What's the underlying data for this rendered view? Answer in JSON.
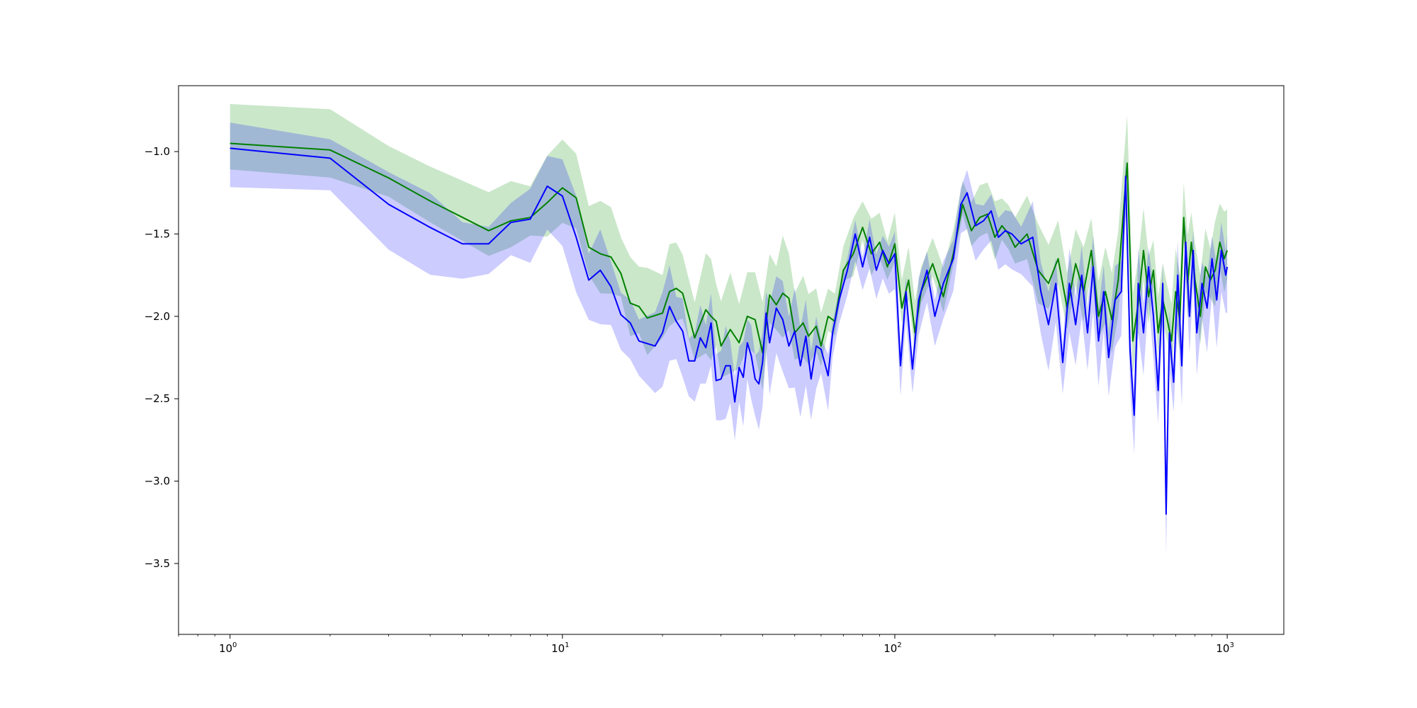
{
  "chart_data": {
    "type": "line",
    "title": "",
    "xlabel": "",
    "ylabel": "",
    "xscale": "log",
    "xlim": [
      0.7,
      1480
    ],
    "ylim": [
      -3.93,
      -0.6
    ],
    "grid": false,
    "legend": "none",
    "yticks": [
      -1.0,
      -1.5,
      -2.0,
      -2.5,
      -3.0,
      -3.5
    ],
    "ytick_labels": [
      "−1.0",
      "−1.5",
      "−2.0",
      "−2.5",
      "−3.0",
      "−3.5"
    ],
    "xticks": [
      1,
      10,
      100,
      1000
    ],
    "xtick_labels": [
      {
        "base": "10",
        "exp": "0"
      },
      {
        "base": "10",
        "exp": "1"
      },
      {
        "base": "10",
        "exp": "2"
      },
      {
        "base": "10",
        "exp": "3"
      }
    ],
    "series": [
      {
        "color": "#008000",
        "band_color": "#2ca02c",
        "points": [
          [
            1,
            -0.95
          ],
          [
            2,
            -0.99
          ],
          [
            3,
            -1.16
          ],
          [
            4,
            -1.3
          ],
          [
            6,
            -1.48
          ],
          [
            7,
            -1.42
          ],
          [
            8,
            -1.4
          ],
          [
            9,
            -1.31
          ],
          [
            10,
            -1.22
          ],
          [
            11,
            -1.28
          ],
          [
            12,
            -1.58
          ],
          [
            13,
            -1.62
          ],
          [
            14,
            -1.64
          ],
          [
            15,
            -1.74
          ],
          [
            16,
            -1.92
          ],
          [
            17,
            -1.94
          ],
          [
            18,
            -2.01
          ],
          [
            20,
            -1.98
          ],
          [
            21,
            -1.85
          ],
          [
            22,
            -1.83
          ],
          [
            23,
            -1.86
          ],
          [
            25,
            -2.13
          ],
          [
            27,
            -1.96
          ],
          [
            28,
            -2.0
          ],
          [
            29,
            -2.03
          ],
          [
            30,
            -2.18
          ],
          [
            32,
            -2.08
          ],
          [
            34,
            -2.16
          ],
          [
            36,
            -2.0
          ],
          [
            38,
            -2.02
          ],
          [
            40,
            -2.22
          ],
          [
            42,
            -1.87
          ],
          [
            44,
            -1.93
          ],
          [
            46,
            -1.86
          ],
          [
            48,
            -1.89
          ],
          [
            50,
            -2.1
          ],
          [
            53,
            -2.04
          ],
          [
            55,
            -2.12
          ],
          [
            58,
            -2.06
          ],
          [
            60,
            -2.18
          ],
          [
            63,
            -2.0
          ],
          [
            66,
            -2.03
          ],
          [
            70,
            -1.72
          ],
          [
            75,
            -1.62
          ],
          [
            80,
            -1.46
          ],
          [
            85,
            -1.62
          ],
          [
            90,
            -1.55
          ],
          [
            95,
            -1.7
          ],
          [
            100,
            -1.56
          ],
          [
            105,
            -1.95
          ],
          [
            110,
            -1.78
          ],
          [
            115,
            -2.1
          ],
          [
            120,
            -1.85
          ],
          [
            130,
            -1.68
          ],
          [
            140,
            -1.88
          ],
          [
            150,
            -1.62
          ],
          [
            160,
            -1.32
          ],
          [
            170,
            -1.48
          ],
          [
            180,
            -1.4
          ],
          [
            190,
            -1.38
          ],
          [
            200,
            -1.52
          ],
          [
            210,
            -1.45
          ],
          [
            220,
            -1.5
          ],
          [
            230,
            -1.58
          ],
          [
            250,
            -1.5
          ],
          [
            270,
            -1.72
          ],
          [
            290,
            -1.8
          ],
          [
            310,
            -1.65
          ],
          [
            330,
            -1.95
          ],
          [
            350,
            -1.68
          ],
          [
            370,
            -1.85
          ],
          [
            390,
            -1.6
          ],
          [
            410,
            -2.0
          ],
          [
            430,
            -1.85
          ],
          [
            450,
            -2.02
          ],
          [
            470,
            -1.78
          ],
          [
            500,
            -1.07
          ],
          [
            520,
            -2.15
          ],
          [
            540,
            -1.92
          ],
          [
            560,
            -1.6
          ],
          [
            580,
            -1.88
          ],
          [
            600,
            -1.72
          ],
          [
            620,
            -2.1
          ],
          [
            640,
            -1.9
          ],
          [
            660,
            -2.02
          ],
          [
            680,
            -2.15
          ],
          [
            700,
            -1.85
          ],
          [
            720,
            -2.02
          ],
          [
            740,
            -1.4
          ],
          [
            760,
            -1.8
          ],
          [
            780,
            -1.55
          ],
          [
            800,
            -1.78
          ],
          [
            830,
            -2.0
          ],
          [
            860,
            -1.7
          ],
          [
            890,
            -1.78
          ],
          [
            920,
            -1.72
          ],
          [
            950,
            -1.55
          ],
          [
            980,
            -1.65
          ],
          [
            1000,
            -1.6
          ]
        ]
      },
      {
        "color": "#0000ff",
        "band_color": "#0000ff",
        "points": [
          [
            1,
            -0.98
          ],
          [
            2,
            -1.04
          ],
          [
            3,
            -1.32
          ],
          [
            4,
            -1.46
          ],
          [
            5,
            -1.56
          ],
          [
            6,
            -1.56
          ],
          [
            7,
            -1.43
          ],
          [
            8,
            -1.41
          ],
          [
            9,
            -1.21
          ],
          [
            10,
            -1.27
          ],
          [
            11,
            -1.52
          ],
          [
            12,
            -1.78
          ],
          [
            13,
            -1.72
          ],
          [
            14,
            -1.82
          ],
          [
            15,
            -1.99
          ],
          [
            16,
            -2.04
          ],
          [
            17,
            -2.15
          ],
          [
            19,
            -2.18
          ],
          [
            20,
            -2.1
          ],
          [
            21,
            -1.94
          ],
          [
            22,
            -2.03
          ],
          [
            23,
            -2.09
          ],
          [
            24,
            -2.27
          ],
          [
            25,
            -2.27
          ],
          [
            26,
            -2.13
          ],
          [
            27,
            -2.19
          ],
          [
            28,
            -2.04
          ],
          [
            29,
            -2.39
          ],
          [
            30,
            -2.38
          ],
          [
            31,
            -2.3
          ],
          [
            32,
            -2.3
          ],
          [
            33,
            -2.52
          ],
          [
            34,
            -2.31
          ],
          [
            35,
            -2.37
          ],
          [
            36,
            -2.16
          ],
          [
            37,
            -2.24
          ],
          [
            38,
            -2.38
          ],
          [
            39,
            -2.41
          ],
          [
            40,
            -2.28
          ],
          [
            41,
            -1.98
          ],
          [
            42,
            -2.16
          ],
          [
            44,
            -1.95
          ],
          [
            46,
            -2.02
          ],
          [
            48,
            -2.18
          ],
          [
            50,
            -2.09
          ],
          [
            52,
            -2.3
          ],
          [
            54,
            -2.12
          ],
          [
            56,
            -2.38
          ],
          [
            58,
            -2.18
          ],
          [
            60,
            -2.2
          ],
          [
            63,
            -2.36
          ],
          [
            65,
            -2.1
          ],
          [
            68,
            -1.9
          ],
          [
            72,
            -1.72
          ],
          [
            76,
            -1.5
          ],
          [
            80,
            -1.7
          ],
          [
            84,
            -1.52
          ],
          [
            88,
            -1.72
          ],
          [
            92,
            -1.6
          ],
          [
            96,
            -1.68
          ],
          [
            100,
            -1.62
          ],
          [
            104,
            -2.3
          ],
          [
            108,
            -1.85
          ],
          [
            113,
            -2.32
          ],
          [
            118,
            -1.9
          ],
          [
            125,
            -1.72
          ],
          [
            132,
            -2.0
          ],
          [
            140,
            -1.8
          ],
          [
            150,
            -1.65
          ],
          [
            158,
            -1.32
          ],
          [
            165,
            -1.25
          ],
          [
            175,
            -1.45
          ],
          [
            185,
            -1.42
          ],
          [
            195,
            -1.36
          ],
          [
            205,
            -1.52
          ],
          [
            215,
            -1.48
          ],
          [
            225,
            -1.5
          ],
          [
            240,
            -1.56
          ],
          [
            260,
            -1.52
          ],
          [
            275,
            -1.85
          ],
          [
            290,
            -2.05
          ],
          [
            305,
            -1.8
          ],
          [
            320,
            -2.28
          ],
          [
            335,
            -1.8
          ],
          [
            350,
            -2.05
          ],
          [
            365,
            -1.75
          ],
          [
            380,
            -2.1
          ],
          [
            395,
            -1.7
          ],
          [
            410,
            -2.15
          ],
          [
            425,
            -1.85
          ],
          [
            440,
            -2.25
          ],
          [
            460,
            -1.9
          ],
          [
            480,
            -1.85
          ],
          [
            495,
            -1.15
          ],
          [
            510,
            -2.2
          ],
          [
            525,
            -2.6
          ],
          [
            540,
            -1.8
          ],
          [
            560,
            -2.1
          ],
          [
            580,
            -1.7
          ],
          [
            600,
            -2.0
          ],
          [
            620,
            -2.45
          ],
          [
            640,
            -1.8
          ],
          [
            655,
            -3.2
          ],
          [
            670,
            -2.1
          ],
          [
            690,
            -2.4
          ],
          [
            710,
            -1.75
          ],
          [
            730,
            -2.3
          ],
          [
            750,
            -1.55
          ],
          [
            770,
            -2.0
          ],
          [
            790,
            -1.6
          ],
          [
            810,
            -2.1
          ],
          [
            840,
            -1.8
          ],
          [
            870,
            -1.95
          ],
          [
            900,
            -1.65
          ],
          [
            930,
            -1.9
          ],
          [
            960,
            -1.6
          ],
          [
            990,
            -1.75
          ],
          [
            1000,
            -1.7
          ]
        ]
      }
    ]
  }
}
